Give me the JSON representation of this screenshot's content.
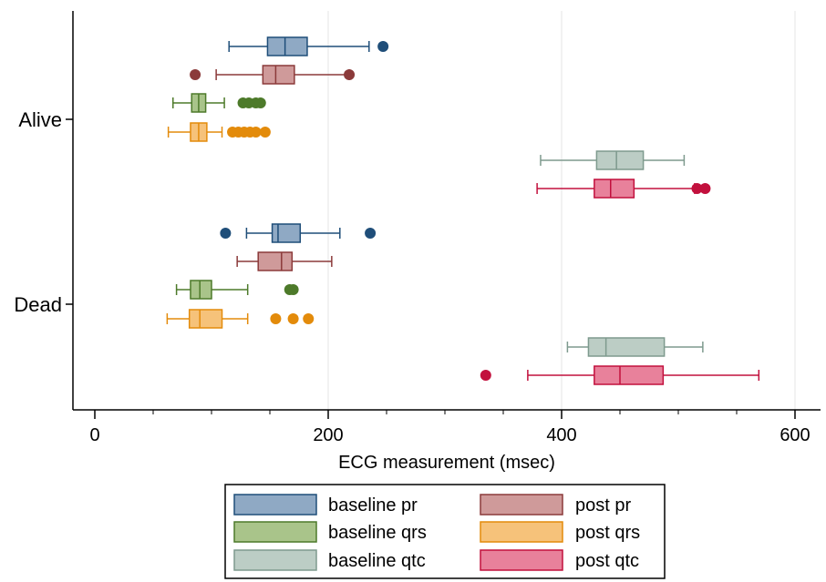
{
  "chart_data": {
    "type": "box",
    "orientation": "horizontal",
    "xlabel": "ECG measurement (msec)",
    "xlim": [
      0,
      600
    ],
    "xticks": [
      0,
      200,
      400,
      600
    ],
    "grid": true,
    "legend_position": "bottom",
    "groups": [
      "Alive",
      "Dead"
    ],
    "series": [
      {
        "name": "baseline pr",
        "color": "#1f4e79",
        "fill": "#8fa9c4",
        "boxes": [
          {
            "group": "Alive",
            "whisker_low": 115,
            "q1": 148,
            "median": 163,
            "q3": 182,
            "whisker_high": 235,
            "outliers": [
              247
            ]
          },
          {
            "group": "Dead",
            "whisker_low": 130,
            "q1": 152,
            "median": 157,
            "q3": 176,
            "whisker_high": 210,
            "outliers": [
              112,
              236
            ]
          }
        ]
      },
      {
        "name": "post pr",
        "color": "#8b3a3a",
        "fill": "#cf9a9a",
        "boxes": [
          {
            "group": "Alive",
            "whisker_low": 104,
            "q1": 144,
            "median": 155,
            "q3": 171,
            "whisker_high": 218,
            "outliers": [
              86,
              218
            ]
          },
          {
            "group": "Dead",
            "whisker_low": 122,
            "q1": 140,
            "median": 160,
            "q3": 169,
            "whisker_high": 203,
            "outliers": []
          }
        ]
      },
      {
        "name": "baseline qrs",
        "color": "#4d7a2a",
        "fill": "#a9c48a",
        "boxes": [
          {
            "group": "Alive",
            "whisker_low": 67,
            "q1": 83,
            "median": 89,
            "q3": 95,
            "whisker_high": 111,
            "outliers": [
              127,
              132,
              138,
              142
            ]
          },
          {
            "group": "Dead",
            "whisker_low": 70,
            "q1": 82,
            "median": 90,
            "q3": 100,
            "whisker_high": 131,
            "outliers": [
              167,
              170
            ]
          }
        ]
      },
      {
        "name": "post qrs",
        "color": "#e38b0b",
        "fill": "#f6c27a",
        "boxes": [
          {
            "group": "Alive",
            "whisker_low": 63,
            "q1": 82,
            "median": 89,
            "q3": 96,
            "whisker_high": 109,
            "outliers": [
              118,
              123,
              128,
              133,
              138,
              146
            ]
          },
          {
            "group": "Dead",
            "whisker_low": 62,
            "q1": 81,
            "median": 90,
            "q3": 109,
            "whisker_high": 131,
            "outliers": [
              155,
              170,
              183
            ]
          }
        ]
      },
      {
        "name": "baseline qtc",
        "color": "#7e9a8e",
        "fill": "#bccdc5",
        "boxes": [
          {
            "group": "Alive",
            "whisker_low": 382,
            "q1": 430,
            "median": 447,
            "q3": 470,
            "whisker_high": 505,
            "outliers": []
          },
          {
            "group": "Dead",
            "whisker_low": 405,
            "q1": 423,
            "median": 438,
            "q3": 488,
            "whisker_high": 521,
            "outliers": []
          }
        ]
      },
      {
        "name": "post qtc",
        "color": "#c2103d",
        "fill": "#e8819b",
        "boxes": [
          {
            "group": "Alive",
            "whisker_low": 379,
            "q1": 428,
            "median": 442,
            "q3": 462,
            "whisker_high": 514,
            "outliers": [
              516,
              523
            ]
          },
          {
            "group": "Dead",
            "whisker_low": 371,
            "q1": 428,
            "median": 450,
            "q3": 487,
            "whisker_high": 569,
            "outliers": [
              335
            ]
          }
        ]
      }
    ]
  }
}
